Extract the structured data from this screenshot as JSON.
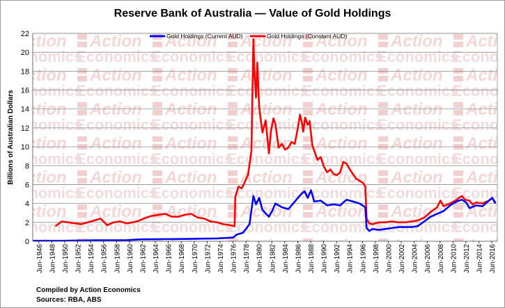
{
  "chart_data": {
    "type": "line",
    "title": "Reserve Bank of Australia — Value of Gold Holdings",
    "ylabel": "Billions of Australian Dollars",
    "xlabel": "",
    "ylim": [
      0,
      22
    ],
    "xlim": [
      1945.5,
      2017.3
    ],
    "yticks": [
      0,
      2,
      4,
      6,
      8,
      10,
      12,
      14,
      16,
      18,
      20,
      22
    ],
    "xtick_labels": [
      "Jun-1946",
      "Jun-1948",
      "Jun-1950",
      "Jun-1952",
      "Jun-1954",
      "Jun-1956",
      "Jun-1958",
      "Jun-1960",
      "Jun-1962",
      "Jun-1964",
      "Jun-1966",
      "Jun-1968",
      "Jun-1970",
      "Jun-1972",
      "Jun-1974",
      "Jun-1976",
      "Jun-1978",
      "Jun-1980",
      "Jun-1982",
      "Jun-1984",
      "Jun-1986",
      "Jun-1988",
      "Jun-1990",
      "Jun-1992",
      "Jun-1994",
      "Jun-1996",
      "Jun-1998",
      "Jun-2000",
      "Jun-2002",
      "Jun-2004",
      "Jun-2006",
      "Jun-2008",
      "Jun-2010",
      "Jun-2012",
      "Jun-2014",
      "Jun-2016"
    ],
    "grid": true,
    "legend_position": "top",
    "series": [
      {
        "name": "Gold Holdings (Current AUD)",
        "color": "#0000ff",
        "x": [
          1945.5,
          1950,
          1955,
          1960,
          1962,
          1965,
          1970,
          1972,
          1974,
          1975.5,
          1976.5,
          1977,
          1978,
          1979,
          1979.6,
          1980,
          1980.5,
          1981,
          1982,
          1982.5,
          1983,
          1984,
          1985,
          1985.5,
          1986,
          1987,
          1987.5,
          1988,
          1988.5,
          1989,
          1990,
          1991,
          1992,
          1993,
          1994,
          1995,
          1996,
          1996.9,
          1997.1,
          1997.5,
          1998,
          1999,
          2000,
          2001,
          2002,
          2003,
          2004,
          2005,
          2006,
          2007,
          2008,
          2009,
          2010,
          2011,
          2011.8,
          2012.5,
          2013,
          2014,
          2015,
          2016,
          2016.5,
          2017
        ],
        "y": [
          0.05,
          0.05,
          0.1,
          0.12,
          0.2,
          0.22,
          0.25,
          0.28,
          0.3,
          0.35,
          0.4,
          0.7,
          0.9,
          1.8,
          4.8,
          3.9,
          4.6,
          3.3,
          2.6,
          3.2,
          4.0,
          3.6,
          3.4,
          3.8,
          4.2,
          5.0,
          5.3,
          4.6,
          5.4,
          4.2,
          4.3,
          3.8,
          3.9,
          3.8,
          4.4,
          4.2,
          4.0,
          3.6,
          1.4,
          1.1,
          1.3,
          1.2,
          1.3,
          1.4,
          1.5,
          1.5,
          1.5,
          1.6,
          2.1,
          2.6,
          2.9,
          3.2,
          3.8,
          4.2,
          4.4,
          4.1,
          3.5,
          3.8,
          3.7,
          4.3,
          4.6,
          4.0
        ]
      },
      {
        "name": "Gold Holdings (Constant AUD)",
        "color": "#ff0000",
        "x": [
          1949,
          1950,
          1951,
          1952,
          1953,
          1954,
          1955,
          1956,
          1957,
          1958,
          1959,
          1960,
          1961,
          1962,
          1963,
          1964,
          1965,
          1966,
          1967,
          1968,
          1969,
          1970,
          1971,
          1972,
          1973,
          1974,
          1975,
          1976,
          1976.7,
          1976.8,
          1977.3,
          1977.8,
          1978.3,
          1978.8,
          1979.3,
          1979.6,
          1979.8,
          1980,
          1980.2,
          1980.5,
          1981,
          1981.5,
          1982,
          1982.3,
          1982.7,
          1983,
          1983.5,
          1984,
          1984.5,
          1985,
          1985.5,
          1986,
          1986.5,
          1986.8,
          1987.1,
          1987.3,
          1987.6,
          1988,
          1988.3,
          1988.7,
          1989,
          1989.5,
          1990,
          1990.5,
          1991,
          1991.5,
          1992,
          1992.5,
          1993,
          1993.5,
          1994,
          1994.5,
          1995,
          1995.5,
          1996,
          1996.5,
          1996.9,
          1997.1,
          1997.5,
          1998,
          1999,
          2000,
          2001,
          2002,
          2003,
          2004,
          2005,
          2006,
          2007,
          2008,
          2008.5,
          2009,
          2010,
          2011,
          2011.8,
          2012.3,
          2013,
          2013.5,
          2014,
          2015,
          2016,
          2016.5,
          2017
        ],
        "y": [
          1.6,
          2.1,
          2.0,
          1.9,
          1.8,
          2.0,
          2.2,
          2.4,
          1.7,
          2.0,
          2.1,
          1.9,
          2.0,
          2.2,
          2.5,
          2.7,
          2.8,
          2.9,
          2.6,
          2.6,
          2.8,
          2.9,
          2.5,
          2.4,
          2.1,
          2.0,
          1.8,
          1.7,
          1.6,
          4.7,
          5.8,
          5.6,
          6.3,
          7.1,
          9.6,
          21.4,
          17.5,
          15.2,
          18.9,
          14.2,
          11.5,
          12.8,
          9.3,
          11.6,
          13.0,
          12.4,
          9.9,
          10.3,
          9.7,
          9.9,
          10.5,
          10.3,
          12.1,
          13.4,
          12.5,
          11.6,
          13.1,
          12.3,
          12.7,
          10.2,
          9.6,
          8.6,
          8.9,
          7.9,
          7.3,
          7.6,
          7.1,
          7.0,
          7.3,
          8.4,
          8.2,
          7.6,
          7.1,
          6.6,
          6.4,
          6.2,
          5.8,
          2.4,
          1.9,
          1.8,
          2.0,
          2.0,
          2.1,
          2.0,
          2.0,
          2.1,
          2.2,
          2.5,
          3.1,
          3.6,
          4.3,
          3.7,
          4.0,
          4.4,
          4.8,
          4.4,
          4.3,
          3.9,
          4.1,
          4.0,
          4.3,
          4.6,
          4.1
        ]
      }
    ]
  },
  "footer": {
    "compiled_by": "Compiled by Action Economics",
    "sources": "Sources: RBA, ABS"
  },
  "watermark": {
    "line1": "Action",
    "line2": "Economics"
  }
}
